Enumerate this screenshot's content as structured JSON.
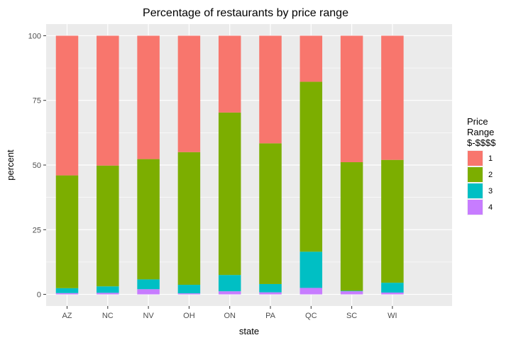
{
  "chart_data": {
    "type": "bar",
    "stacked": true,
    "title": "Percentage of restaurants by price range",
    "xlabel": "state",
    "ylabel": "percent",
    "ylim": [
      0,
      100
    ],
    "yticks": [
      0,
      25,
      50,
      75,
      100
    ],
    "categories": [
      "AZ",
      "NC",
      "NV",
      "OH",
      "ON",
      "PA",
      "QC",
      "SC",
      "WI"
    ],
    "legend": {
      "title_lines": [
        "Price",
        "Range",
        "$-$$$$"
      ],
      "position": "right"
    },
    "series": [
      {
        "name": "4",
        "color": "#C77CFF",
        "values": [
          0.5,
          0.6,
          2.0,
          0.4,
          1.2,
          0.8,
          2.5,
          1.2,
          0.7
        ]
      },
      {
        "name": "3",
        "color": "#00BFC4",
        "values": [
          1.9,
          2.5,
          3.8,
          3.3,
          6.3,
          3.2,
          14.0,
          0.2,
          3.8
        ]
      },
      {
        "name": "2",
        "color": "#7CAE00",
        "values": [
          43.6,
          46.7,
          46.5,
          51.3,
          62.8,
          54.4,
          65.7,
          49.7,
          47.5
        ]
      },
      {
        "name": "1",
        "color": "#F8766D",
        "values": [
          54.0,
          50.2,
          47.7,
          45.0,
          29.7,
          41.6,
          17.8,
          48.9,
          48.0
        ]
      }
    ],
    "legend_order": [
      "1",
      "2",
      "3",
      "4"
    ],
    "grid": true
  }
}
